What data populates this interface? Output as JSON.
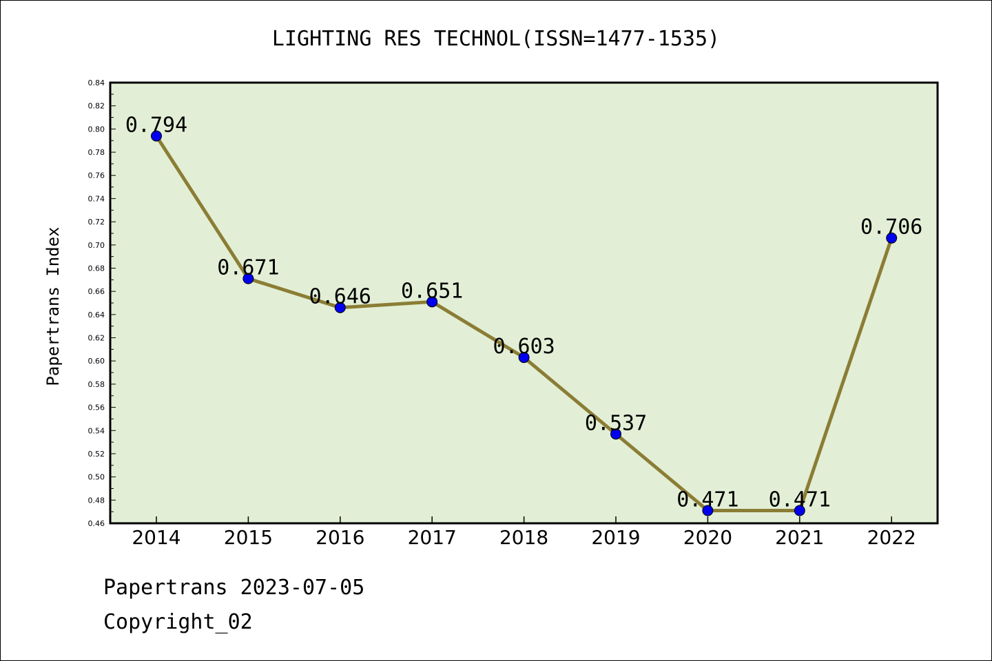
{
  "chart_data": {
    "type": "line",
    "title": "LIGHTING RES TECHNOL(ISSN=1477-1535)",
    "xlabel": "",
    "ylabel": "Papertrans Index",
    "categories": [
      "2014",
      "2015",
      "2016",
      "2017",
      "2018",
      "2019",
      "2020",
      "2021",
      "2022"
    ],
    "values": [
      0.794,
      0.671,
      0.646,
      0.651,
      0.603,
      0.537,
      0.471,
      0.471,
      0.706
    ],
    "data_labels": [
      "0.794",
      "0.671",
      "0.646",
      "0.651",
      "0.603",
      "0.537",
      "0.471",
      "0.471",
      "0.706"
    ],
    "ylim": [
      0.46,
      0.84
    ],
    "yticks": [
      "0.46",
      "0.48",
      "0.50",
      "0.52",
      "0.54",
      "0.56",
      "0.58",
      "0.60",
      "0.62",
      "0.64",
      "0.66",
      "0.68",
      "0.70",
      "0.72",
      "0.74",
      "0.76",
      "0.78",
      "0.80",
      "0.82",
      "0.84"
    ],
    "grid": false,
    "colors": {
      "plot_background": "#e2efd6",
      "line": "#8b7d35",
      "marker": "#0000ee"
    }
  },
  "footer": {
    "date_line": "Papertrans 2023-07-05",
    "copyright": "Copyright_02"
  }
}
